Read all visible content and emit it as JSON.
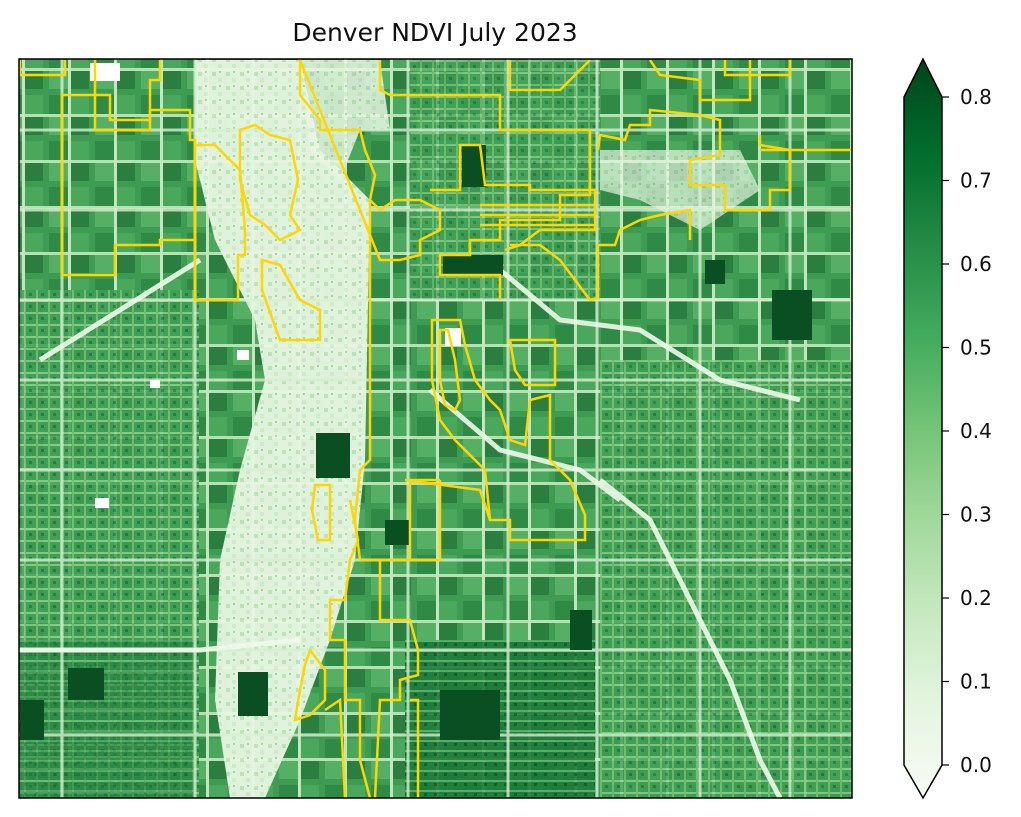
{
  "map": {
    "title": "Denver NDVI July 2023",
    "raster": {
      "colormap": "Greens",
      "colormap_stops": [
        "#f7fcf5",
        "#e5f5e0",
        "#c7e9c0",
        "#a1d99b",
        "#74c476",
        "#41ab5d",
        "#238b45",
        "#006d2c",
        "#00441b"
      ]
    },
    "overlay": {
      "boundary_color": "#ffd700"
    }
  },
  "colorbar": {
    "range": [
      0.0,
      0.8
    ],
    "extend": "both",
    "ticks": [
      {
        "value": 0.0,
        "label": "0.0"
      },
      {
        "value": 0.1,
        "label": "0.1"
      },
      {
        "value": 0.2,
        "label": "0.2"
      },
      {
        "value": 0.3,
        "label": "0.3"
      },
      {
        "value": 0.4,
        "label": "0.4"
      },
      {
        "value": 0.5,
        "label": "0.5"
      },
      {
        "value": 0.6,
        "label": "0.6"
      },
      {
        "value": 0.7,
        "label": "0.7"
      },
      {
        "value": 0.8,
        "label": "0.8"
      }
    ]
  }
}
